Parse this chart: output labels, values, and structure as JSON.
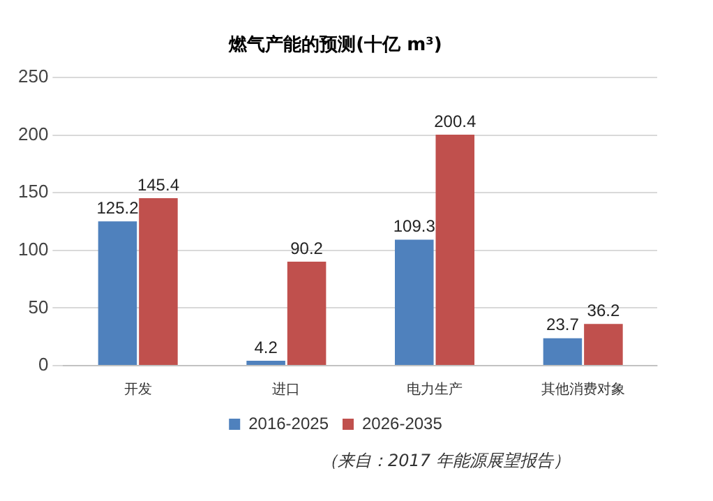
{
  "chart_data": {
    "type": "bar",
    "title": "燃气产能的预测(十亿 m³)",
    "categories": [
      "开发",
      "进口",
      "电力生产",
      "其他消费对象"
    ],
    "series": [
      {
        "name": "2016-2025",
        "color": "#4f81bd",
        "values": [
          125.2,
          4.2,
          109.3,
          23.7
        ]
      },
      {
        "name": "2026-2035",
        "color": "#c0504d",
        "values": [
          145.4,
          90.2,
          200.4,
          36.2
        ]
      }
    ],
    "ylim": [
      0,
      250
    ],
    "yticks": [
      0,
      50,
      100,
      150,
      200,
      250
    ],
    "grid": "y",
    "legend": "bottom",
    "data_labels": true,
    "annotations": [
      "（来自：2017 年能源展望报告）"
    ]
  }
}
